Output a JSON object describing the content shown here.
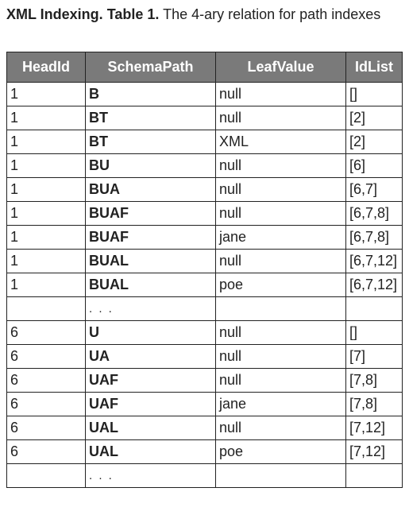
{
  "caption": {
    "label": "XML Indexing.",
    "table_number": "Table 1.",
    "description": "The 4-ary relation for path indexes"
  },
  "table": {
    "headers": [
      "HeadId",
      "SchemaPath",
      "LeafValue",
      "IdList"
    ],
    "rows": [
      [
        "1",
        "B",
        "null",
        "[]"
      ],
      [
        "1",
        "BT",
        "null",
        "[2]"
      ],
      [
        "1",
        "BT",
        "XML",
        "[2]"
      ],
      [
        "1",
        "BU",
        "null",
        "[6]"
      ],
      [
        "1",
        "BUA",
        "null",
        "[6,7]"
      ],
      [
        "1",
        "BUAF",
        "null",
        "[6,7,8]"
      ],
      [
        "1",
        "BUAF",
        "jane",
        "[6,7,8]"
      ],
      [
        "1",
        "BUAL",
        "null",
        "[6,7,12]"
      ],
      [
        "1",
        "BUAL",
        "poe",
        "[6,7,12]"
      ],
      [
        "",
        ". . .",
        "",
        ""
      ],
      [
        "6",
        "U",
        "null",
        "[]"
      ],
      [
        "6",
        "UA",
        "null",
        "[7]"
      ],
      [
        "6",
        "UAF",
        "null",
        "[7,8]"
      ],
      [
        "6",
        "UAF",
        "jane",
        "[7,8]"
      ],
      [
        "6",
        "UAL",
        "null",
        "[7,12]"
      ],
      [
        "6",
        "UAL",
        "poe",
        "[7,12]"
      ],
      [
        "",
        ". . .",
        "",
        ""
      ]
    ]
  }
}
